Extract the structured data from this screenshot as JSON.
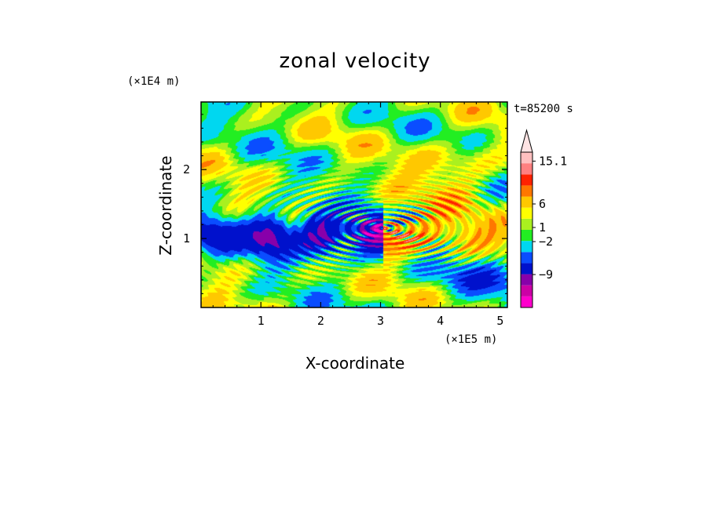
{
  "chart_data": {
    "type": "heatmap",
    "title": "zonal velocity",
    "xlabel": "X-coordinate",
    "ylabel": "Z-coordinate",
    "x_unit": "(×1E5 m)",
    "y_unit": "(×1E4 m)",
    "time_label": "t=85200 s",
    "xlim": [
      0,
      5.12
    ],
    "ylim": [
      0,
      2.98
    ],
    "x_ticks": [
      "1",
      "2",
      "3",
      "4",
      "5"
    ],
    "x_tick_values": [
      1,
      2,
      3,
      4,
      5
    ],
    "y_ticks": [
      "1",
      "2"
    ],
    "y_tick_values": [
      1,
      2
    ],
    "colorbar": {
      "colors": [
        "#ff00cc",
        "#cc00a6",
        "#8800aa",
        "#0011cc",
        "#0a4dff",
        "#00d7f0",
        "#22ee22",
        "#aaf01f",
        "#ffff00",
        "#ffc800",
        "#ff7700",
        "#ff2200",
        "#ff8080",
        "#ffc0c0"
      ],
      "labels": [
        "15.1",
        "6",
        "1",
        "−2",
        "−9"
      ],
      "label_values": [
        15.1,
        6,
        1,
        -2,
        -9
      ],
      "vmin": -16,
      "vmax": 17,
      "extend": "max"
    },
    "field_features": {
      "background_range": [
        -2,
        3
      ],
      "negative_band": {
        "from_x": 0.4,
        "to_x": 3.1,
        "z": 1.05,
        "min_value": -12
      },
      "positive_band": {
        "from_x": 3.1,
        "to_x": 5.0,
        "z": 1.05,
        "max_value": 10
      },
      "source_point": {
        "x": 3.05,
        "z": 1.15
      }
    }
  }
}
